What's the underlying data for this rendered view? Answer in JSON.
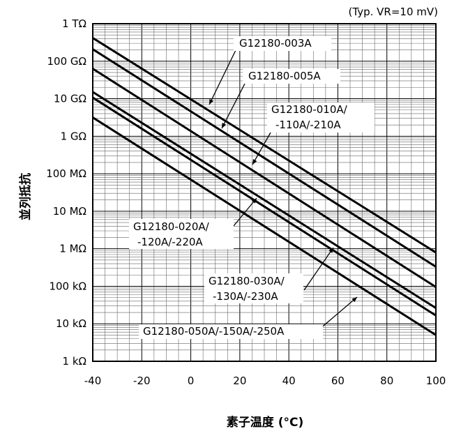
{
  "chart_data": {
    "type": "line",
    "note": "(Typ. VR=10 mV)",
    "xlabel": "素子温度 (°C)",
    "ylabel": "並列抵抗",
    "x_ticks": [
      "-40",
      "-20",
      "0",
      "20",
      "40",
      "60",
      "80",
      "100"
    ],
    "y_ticks": [
      "1 kΩ",
      "10 kΩ",
      "100 kΩ",
      "1 MΩ",
      "10 MΩ",
      "100 MΩ",
      "1 GΩ",
      "10 GΩ",
      "100 GΩ",
      "1 TΩ"
    ],
    "xlim": [
      -40,
      100
    ],
    "ylim_ohm": [
      "1e3",
      "1e12"
    ],
    "y_scale": "log",
    "grid": true,
    "series": [
      {
        "name": "G12180-003A",
        "x": [
          -40,
          100
        ],
        "y_log10_ohm": [
          11.62,
          5.9
        ]
      },
      {
        "name": "G12180-005A",
        "x": [
          -40,
          100
        ],
        "y_log10_ohm": [
          11.32,
          5.52
        ]
      },
      {
        "name": "G12180-010A/-110A/-210A",
        "x": [
          -40,
          100
        ],
        "y_log10_ohm": [
          10.8,
          4.98
        ]
      },
      {
        "name": "G12180-020A/-120A/-220A",
        "x": [
          -40,
          100
        ],
        "y_log10_ohm": [
          10.18,
          4.42
        ]
      },
      {
        "name": "G12180-030A/-130A/-230A",
        "x": [
          -40,
          100
        ],
        "y_log10_ohm": [
          10.03,
          4.22
        ]
      },
      {
        "name": "G12180-050A/-150A/-250A",
        "x": [
          -40,
          100
        ],
        "y_log10_ohm": [
          9.5,
          3.7
        ]
      }
    ]
  }
}
